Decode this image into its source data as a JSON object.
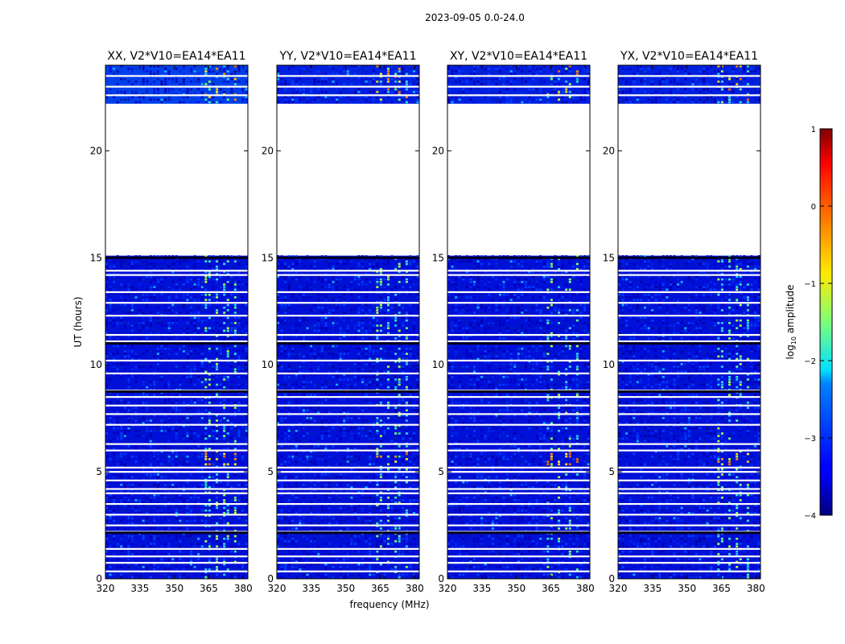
{
  "chart_data": {
    "type": "heatmap",
    "title": "2023-09-05 0.0-24.0",
    "xlabel": "frequency (MHz)",
    "ylabel": "UT (hours)",
    "xlim": [
      320,
      382
    ],
    "ylim": [
      0,
      24
    ],
    "x_ticks": [
      "320",
      "335",
      "350",
      "365",
      "380"
    ],
    "y_ticks": [
      "0",
      "5",
      "10",
      "15",
      "20"
    ],
    "data_gap_hours": [
      22.2,
      15.1
    ],
    "strong_rfi_band_mhz": [
      363,
      379
    ],
    "blank_time_rows_ut": [
      0.35,
      0.75,
      1.05,
      1.4,
      2.2,
      2.5,
      3.0,
      3.5,
      4.0,
      4.2,
      4.6,
      5.0,
      5.2,
      6.0,
      6.3,
      7.2,
      7.7,
      8.1,
      8.5,
      8.8,
      9.6,
      10.2,
      11.1,
      11.4,
      12.3,
      12.9,
      13.4,
      14.2,
      14.4,
      22.6,
      23.0,
      23.5
    ],
    "panels": [
      {
        "name": "XX",
        "title": "XX, V2*V10=EA14*EA11"
      },
      {
        "name": "YY",
        "title": "YY, V2*V10=EA14*EA11"
      },
      {
        "name": "XY",
        "title": "XY, V2*V10=EA14*EA11"
      },
      {
        "name": "YX",
        "title": "YX, V2*V10=EA14*EA11"
      }
    ],
    "colorbar": {
      "label_base": "log",
      "label_sub": "10",
      "label_rest": " amplitude",
      "range": [
        -4,
        1
      ],
      "ticks": [
        "1",
        "0",
        "−1",
        "−2",
        "−3",
        "−4"
      ],
      "colormap": "jet"
    }
  }
}
